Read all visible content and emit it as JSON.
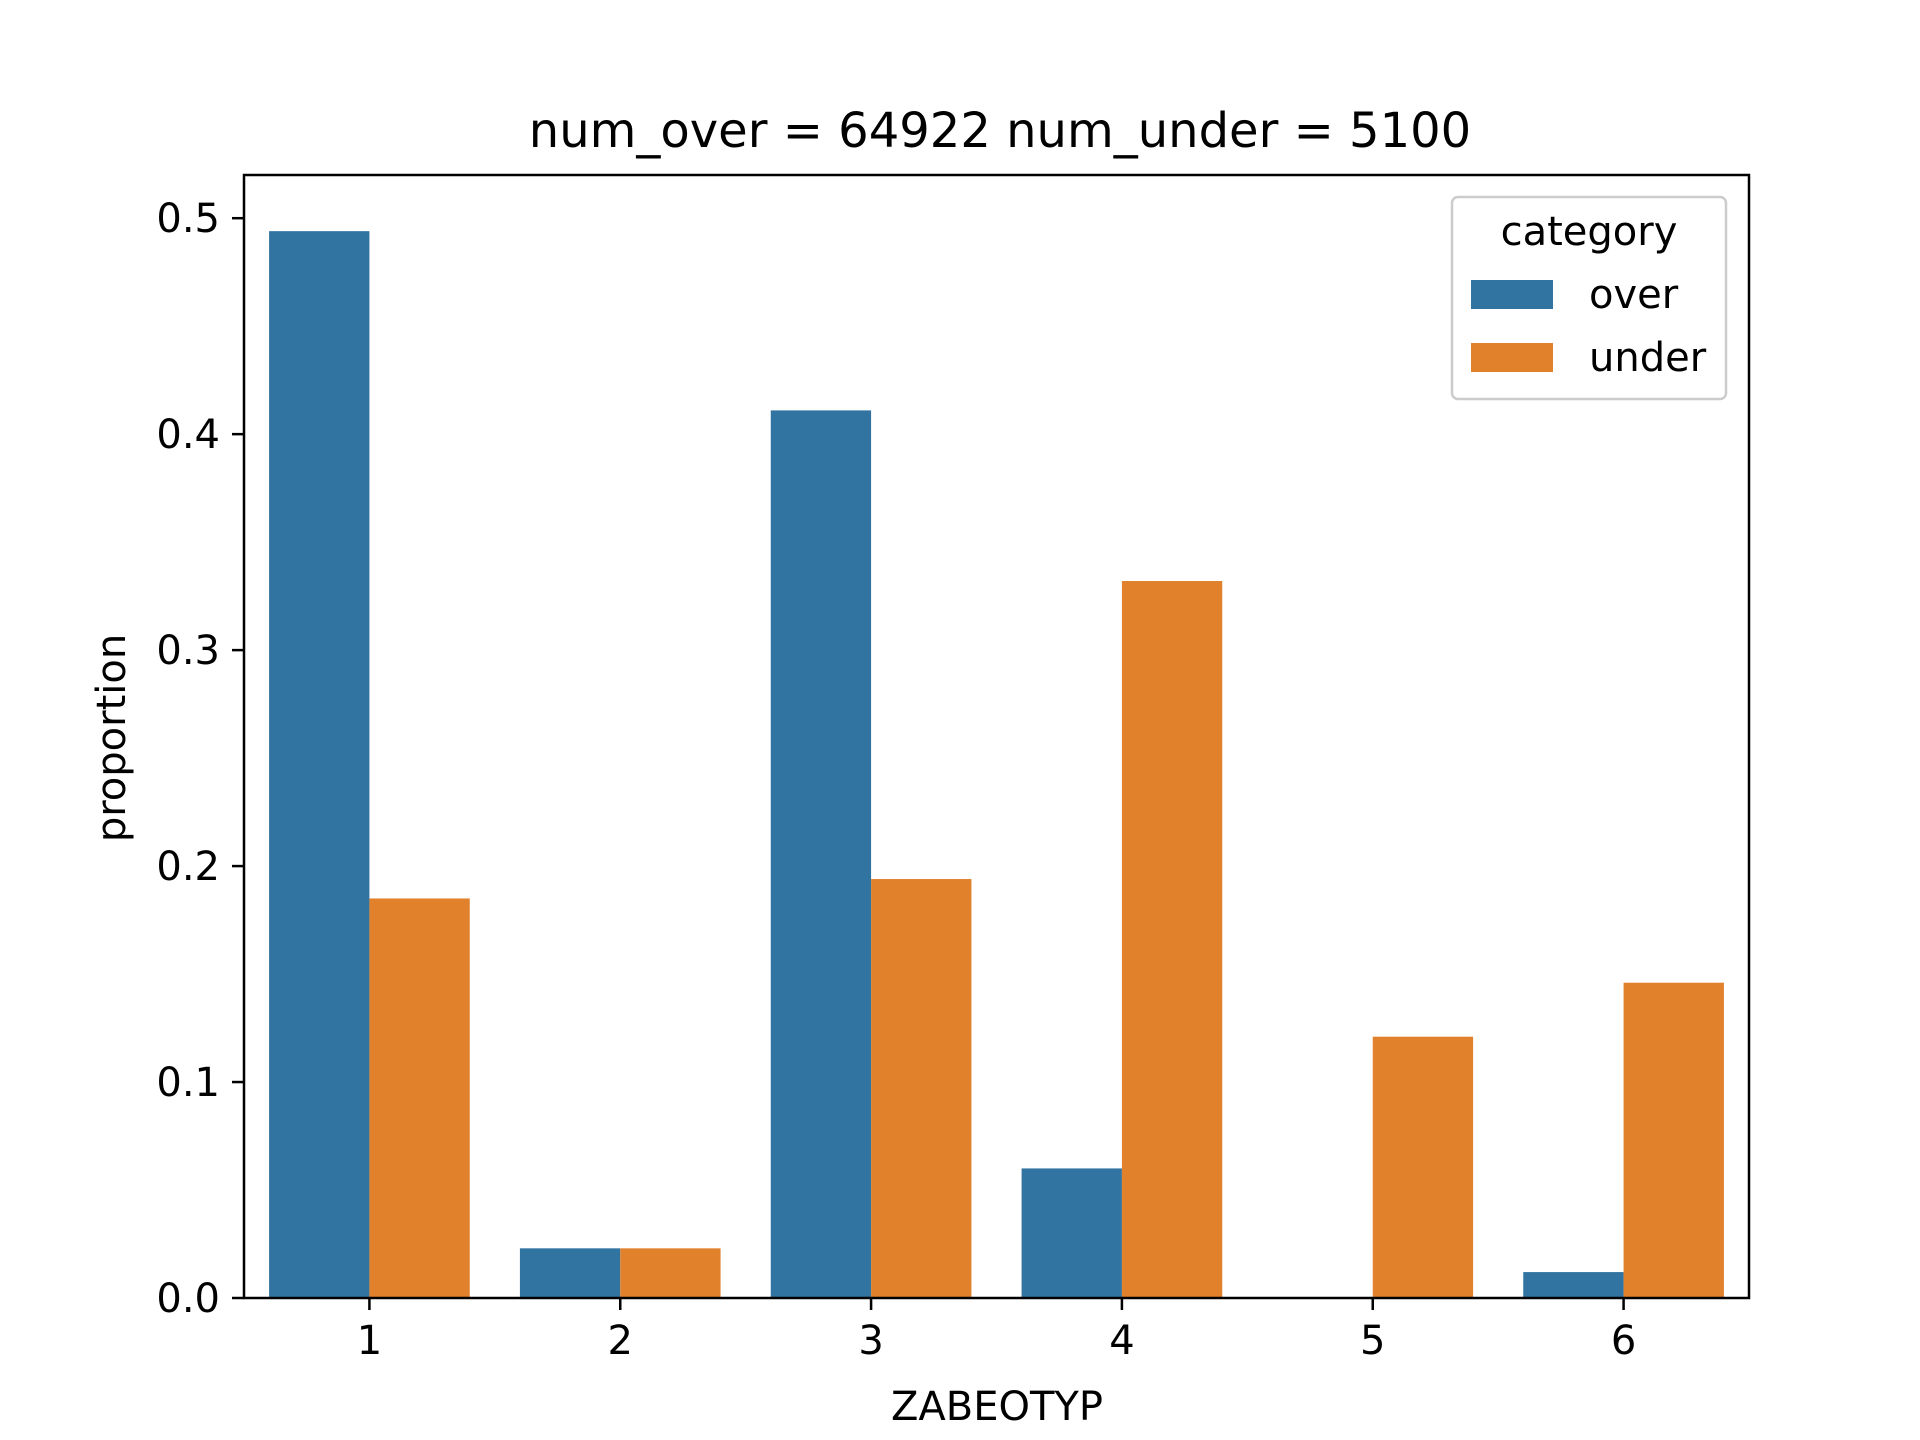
{
  "chart_data": {
    "type": "bar",
    "title": "num_over = 64922  num_under = 5100",
    "xlabel": "ZABEOTYP",
    "ylabel": "proportion",
    "categories": [
      "1",
      "2",
      "3",
      "4",
      "5",
      "6"
    ],
    "ylim": [
      0,
      0.52
    ],
    "yticks": [
      "0.0",
      "0.1",
      "0.2",
      "0.3",
      "0.4",
      "0.5"
    ],
    "grid": false,
    "legend": {
      "title": "category",
      "placement": "top-right"
    },
    "series": [
      {
        "name": "over",
        "color": "#3274a1",
        "values": [
          0.494,
          0.023,
          0.411,
          0.06,
          0.0,
          0.012
        ]
      },
      {
        "name": "under",
        "color": "#e1812c",
        "values": [
          0.185,
          0.023,
          0.194,
          0.332,
          0.121,
          0.146
        ]
      }
    ]
  }
}
